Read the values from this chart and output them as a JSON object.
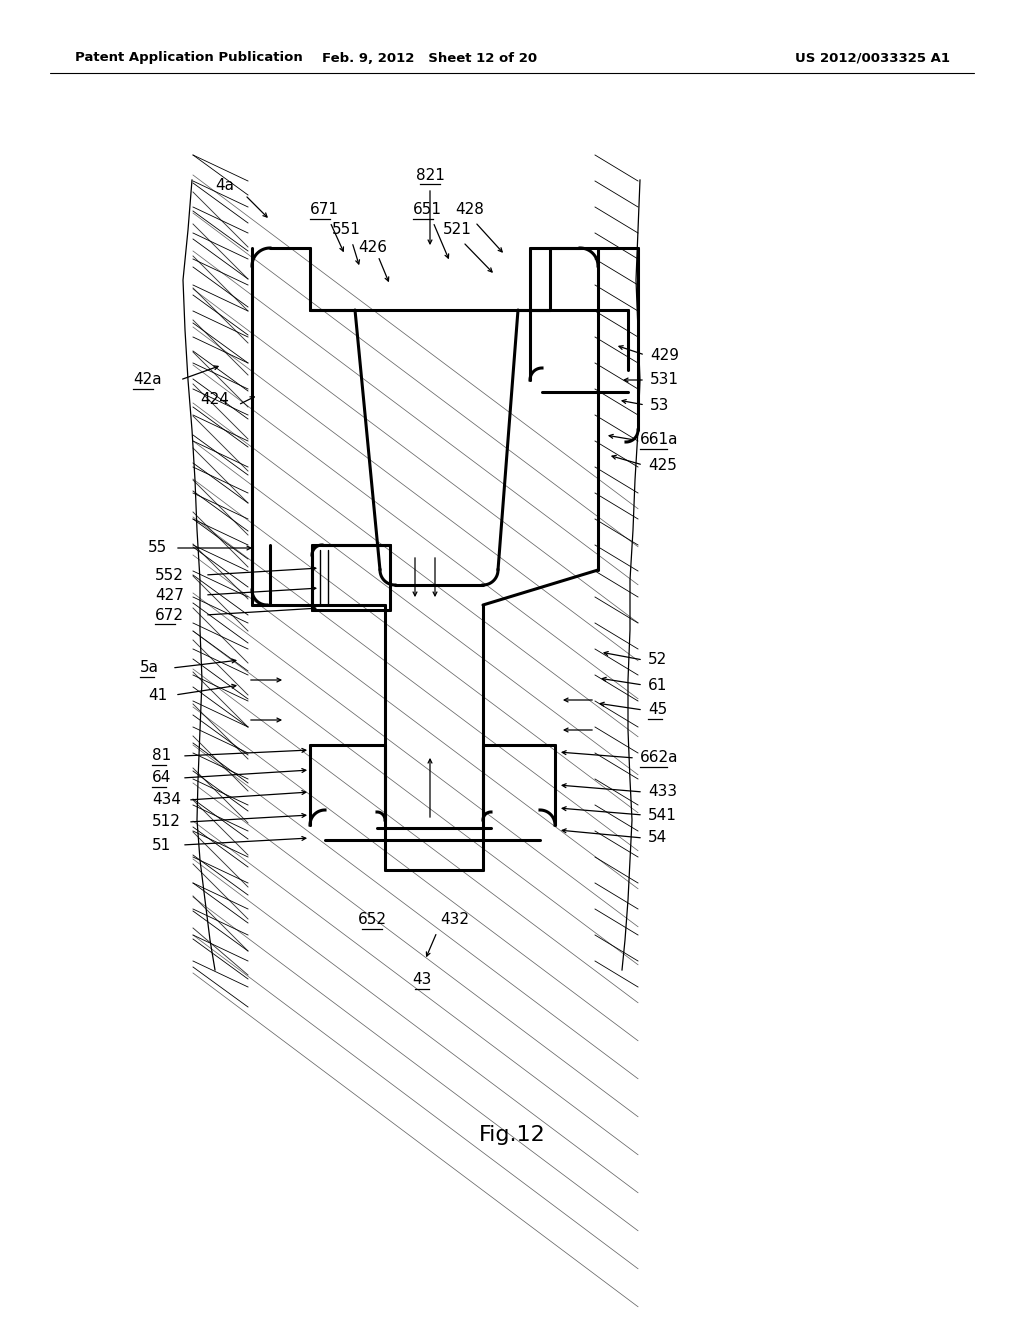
{
  "title": "Fig.12",
  "header_left": "Patent Application Publication",
  "header_mid": "Feb. 9, 2012   Sheet 12 of 20",
  "header_right": "US 2012/0033325 A1",
  "bg_color": "#ffffff"
}
